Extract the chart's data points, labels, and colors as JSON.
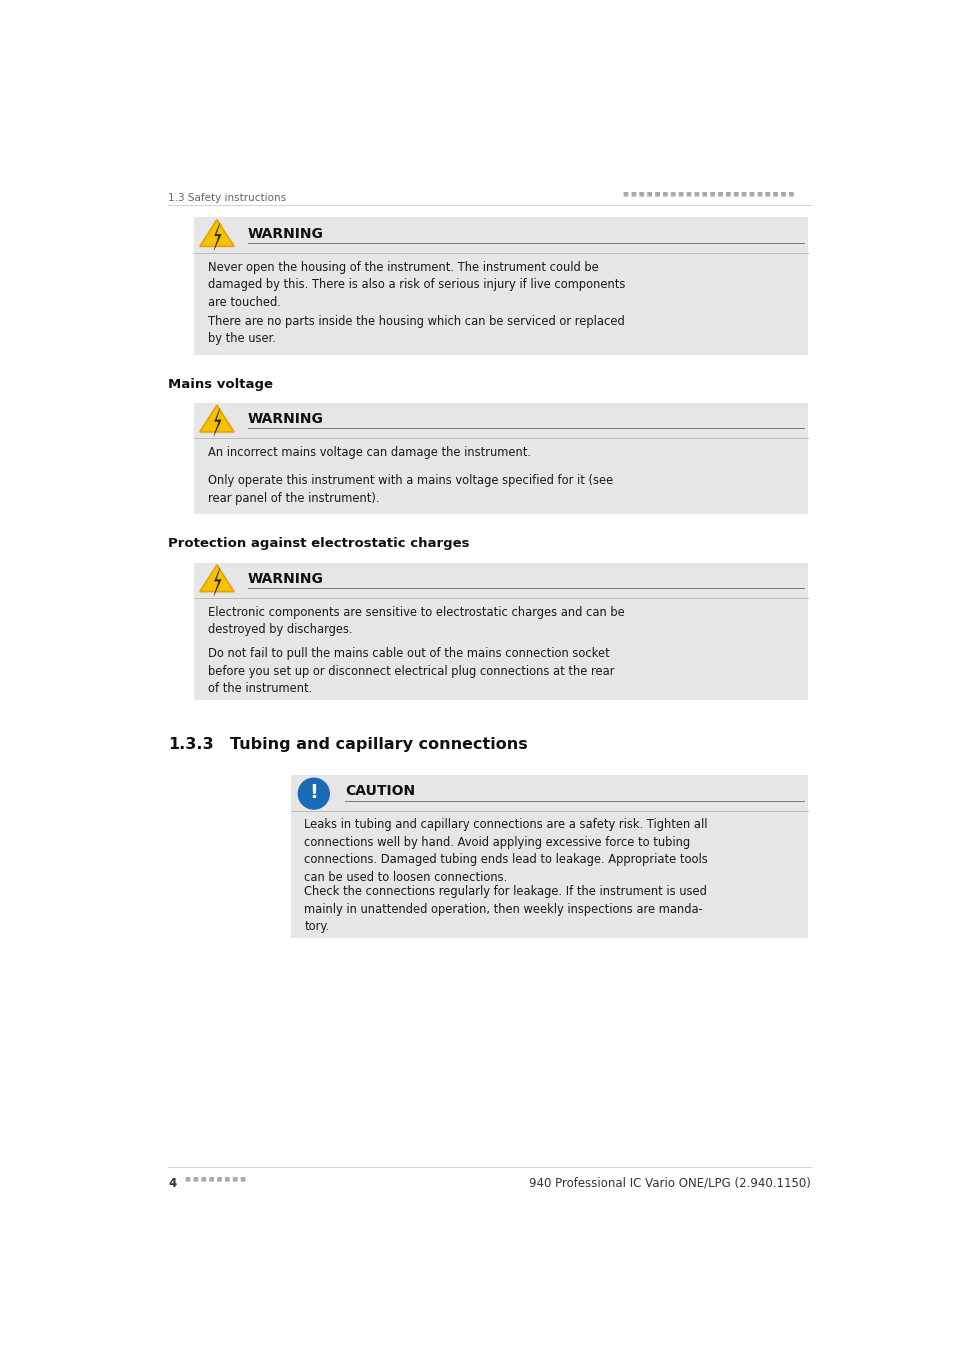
{
  "page_width": 9.54,
  "page_height": 13.5,
  "bg_color": "#ffffff",
  "header_left": "1.3 Safety instructions",
  "footer_right": "940 Professional IC Vario ONE/LPG (2.940.1150)",
  "section_133_label": "1.3.3",
  "section_133_title": "Tubing and capillary connections",
  "box_bg": "#e6e6e6",
  "mains_voltage_title": "Mains voltage",
  "protection_title": "Protection against electrostatic charges",
  "warning_label": "WARNING",
  "caution_label": "CAUTION",
  "para1a": "Never open the housing of the instrument. The instrument could be\ndamaged by this. There is also a risk of serious injury if live components\nare touched.",
  "para1b": "There are no parts inside the housing which can be serviced or replaced\nby the user.",
  "para2a": "An incorrect mains voltage can damage the instrument.",
  "para2b": "Only operate this instrument with a mains voltage specified for it (see\nrear panel of the instrument).",
  "para3a": "Electronic components are sensitive to electrostatic charges and can be\ndestroyed by discharges.",
  "para3b": "Do not fail to pull the mains cable out of the mains connection socket\nbefore you set up or disconnect electrical plug connections at the rear\nof the instrument.",
  "para4a": "Leaks in tubing and capillary connections are a safety risk. Tighten all\nconnections well by hand. Avoid applying excessive force to tubing\nconnections. Damaged tubing ends lead to leakage. Appropriate tools\ncan be used to loosen connections.",
  "para4b": "Check the connections regularly for leakage. If the instrument is used\nmainly in unattended operation, then weekly inspections are manda-\ntory.",
  "warning_icon_color": "#f5c200",
  "warning_icon_edge": "#e8a000",
  "caution_icon_color": "#1a6ab5",
  "icon_bolt_color": "#222222",
  "text_color": "#1a1a1a",
  "subhead_color": "#111111",
  "header_color": "#666666",
  "dot_color": "#aaaaaa",
  "line_color": "#bbbbbb",
  "footer_color": "#333333"
}
